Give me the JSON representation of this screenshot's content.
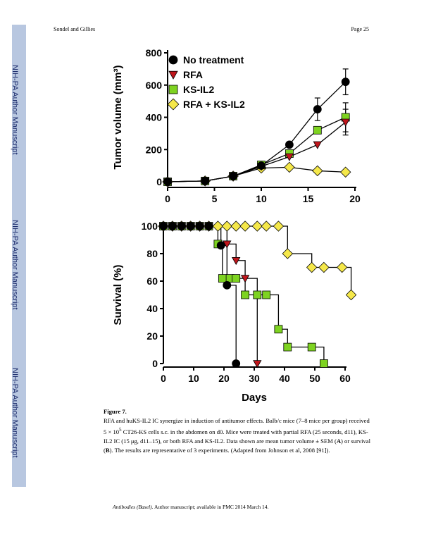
{
  "header": {
    "left": "Sondel and Gillies",
    "right": "Page 25"
  },
  "sidebar": {
    "label": "NIH-PA Author Manuscript"
  },
  "figure": {
    "label": "Figure 7."
  },
  "caption": {
    "part1": "RFA and huKS-IL2 IC synergize in induction of antitumor effects. Balb/c mice (7–8 mice per group) received 5 × 10",
    "sup": "5",
    "part2": " CT26-KS cells s.c. in the abdomen on d0. Mice were treated with partial RFA (25 seconds, d11), KS-IL2 IC (15 μg, d11–15), or both RFA and KS-IL2. Data shown are mean tumor volume ± SEM (",
    "boldA": "A",
    "part3": ") or survival (",
    "boldB": "B",
    "part4": "). The results are representative of 3 experiments. (Adapted from Johnson et al, 2008 [91])."
  },
  "footer": {
    "journal": "Antibodies (Basel).",
    "rest": " Author manuscript; available in PMC 2014 March 14."
  },
  "chart_data": [
    {
      "type": "line",
      "ylabel": "Tumor volume (mm³)",
      "xlabel": "",
      "xlim": [
        0,
        20
      ],
      "ylim": [
        0,
        800
      ],
      "xticks": [
        0,
        5,
        10,
        15,
        20
      ],
      "yticks": [
        0,
        200,
        400,
        600,
        800
      ],
      "legend_position": "top-left",
      "series": [
        {
          "name": "No treatment",
          "marker": "circle",
          "color": "#000000",
          "x": [
            0,
            4,
            7,
            10,
            13,
            16,
            19
          ],
          "y": [
            0,
            5,
            35,
            100,
            230,
            450,
            620
          ],
          "err": [
            0,
            0,
            0,
            0,
            0,
            70,
            80
          ]
        },
        {
          "name": "RFA",
          "marker": "triangle-down",
          "color": "#c0161c",
          "x": [
            0,
            4,
            7,
            10,
            13,
            16,
            19
          ],
          "y": [
            0,
            5,
            35,
            95,
            155,
            230,
            370
          ],
          "err": [
            0,
            0,
            0,
            0,
            0,
            0,
            80
          ]
        },
        {
          "name": "KS-IL2",
          "marker": "square",
          "color": "#7ed321",
          "x": [
            0,
            4,
            7,
            10,
            13,
            16,
            19
          ],
          "y": [
            0,
            5,
            35,
            105,
            175,
            320,
            400
          ],
          "err": [
            0,
            0,
            0,
            0,
            0,
            0,
            90
          ]
        },
        {
          "name": "RFA + KS-IL2",
          "marker": "diamond",
          "color": "#f5e84a",
          "x": [
            0,
            4,
            7,
            10,
            13,
            16,
            19
          ],
          "y": [
            0,
            5,
            35,
            85,
            90,
            68,
            60
          ],
          "err": [
            0,
            0,
            0,
            0,
            0,
            0,
            0
          ]
        }
      ]
    },
    {
      "type": "line",
      "step": true,
      "ylabel": "Survival (%)",
      "xlabel": "Days",
      "xlim": [
        0,
        60
      ],
      "ylim": [
        0,
        100
      ],
      "xticks": [
        0,
        10,
        20,
        30,
        40,
        50,
        60
      ],
      "yticks": [
        0,
        20,
        40,
        60,
        80,
        100
      ],
      "series": [
        {
          "name": "No treatment",
          "marker": "circle",
          "color": "#000000",
          "x": [
            0,
            3,
            6,
            9,
            12,
            15,
            19,
            21,
            24
          ],
          "y": [
            100,
            100,
            100,
            100,
            100,
            100,
            86,
            57,
            0
          ]
        },
        {
          "name": "RFA",
          "marker": "triangle-down",
          "color": "#c0161c",
          "x": [
            0,
            3,
            6,
            9,
            12,
            15,
            21,
            24,
            27,
            31
          ],
          "y": [
            100,
            100,
            100,
            100,
            100,
            100,
            87,
            75,
            62,
            0
          ]
        },
        {
          "name": "KS-IL2",
          "marker": "square",
          "color": "#7ed321",
          "x": [
            0,
            3,
            6,
            9,
            12,
            15,
            18,
            19.5,
            22,
            24,
            27,
            31,
            34,
            38,
            41,
            49,
            53
          ],
          "y": [
            100,
            100,
            100,
            100,
            100,
            100,
            87,
            62,
            62,
            62,
            50,
            50,
            50,
            25,
            12,
            12,
            0
          ]
        },
        {
          "name": "RFA + KS-IL2",
          "marker": "diamond",
          "color": "#f5e84a",
          "x": [
            0,
            3,
            6,
            9,
            12,
            15,
            18,
            21,
            24,
            27,
            31,
            34,
            38,
            41,
            49,
            53,
            59,
            62
          ],
          "y": [
            100,
            100,
            100,
            100,
            100,
            100,
            100,
            100,
            100,
            100,
            100,
            100,
            100,
            80,
            70,
            70,
            70,
            50
          ]
        }
      ]
    }
  ]
}
